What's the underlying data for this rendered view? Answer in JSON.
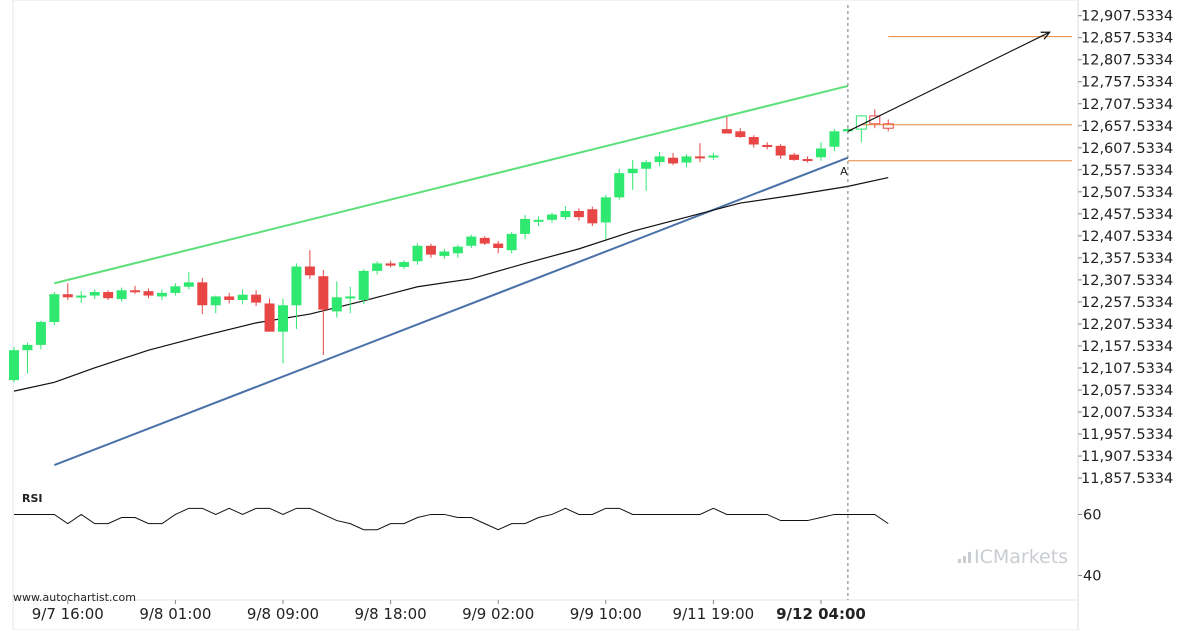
{
  "colors": {
    "up": "#2ee86f",
    "down": "#e84545",
    "channel_top": "#5ce07a",
    "channel_bottom": "#4a72a8",
    "target_line": "#e8863a",
    "ma": "#111111",
    "forecast": "#111111",
    "vline": "#777777",
    "grid": "#f1f1f1",
    "brand": "#c9ccd1"
  },
  "watermark": "www.autochartist.com",
  "brand": {
    "name": "ICMarkets",
    "icon": "bar-chart-logo-icon"
  },
  "chart_data": [
    {
      "type": "candlestick",
      "ylim": [
        11835.0,
        12925.0
      ],
      "x_count": 66,
      "y_ticks": [
        "12,907.5334",
        "12,857.5334",
        "12,807.5334",
        "12,757.5334",
        "12,707.5334",
        "12,657.5334",
        "12,607.5334",
        "12,557.5334",
        "12,507.5334",
        "12,457.5334",
        "12,407.5334",
        "12,357.5334",
        "12,307.5334",
        "12,257.5334",
        "12,207.5334",
        "12,157.5334",
        "12,107.5334",
        "12,057.5334",
        "12,007.5334",
        "11,957.5334",
        "11,907.5334",
        "11,857.5334"
      ],
      "y_tick_values": [
        12907.5334,
        12857.5334,
        12807.5334,
        12757.5334,
        12707.5334,
        12657.5334,
        12607.5334,
        12557.5334,
        12507.5334,
        12457.5334,
        12407.5334,
        12357.5334,
        12307.5334,
        12257.5334,
        12207.5334,
        12157.5334,
        12107.5334,
        12057.5334,
        12007.5334,
        11957.5334,
        11907.5334,
        11857.5334
      ],
      "x_ticks": [
        {
          "label": "9/7 16:00",
          "index": 4
        },
        {
          "label": "9/8 01:00",
          "index": 12
        },
        {
          "label": "9/8 09:00",
          "index": 20
        },
        {
          "label": "9/8 18:00",
          "index": 28
        },
        {
          "label": "9/9 02:00",
          "index": 36
        },
        {
          "label": "9/9 10:00",
          "index": 44
        },
        {
          "label": "9/11 19:00",
          "index": 52
        },
        {
          "label": "9/12 04:00",
          "index": 60,
          "bold": true
        }
      ],
      "candles": [
        {
          "o": 12080,
          "h": 12155,
          "l": 12075,
          "c": 12148
        },
        {
          "o": 12148,
          "h": 12165,
          "l": 12095,
          "c": 12160
        },
        {
          "o": 12160,
          "h": 12215,
          "l": 12150,
          "c": 12212
        },
        {
          "o": 12212,
          "h": 12280,
          "l": 12205,
          "c": 12275
        },
        {
          "o": 12275,
          "h": 12300,
          "l": 12262,
          "c": 12268
        },
        {
          "o": 12268,
          "h": 12282,
          "l": 12255,
          "c": 12272
        },
        {
          "o": 12272,
          "h": 12286,
          "l": 12264,
          "c": 12280
        },
        {
          "o": 12280,
          "h": 12284,
          "l": 12262,
          "c": 12266
        },
        {
          "o": 12264,
          "h": 12290,
          "l": 12258,
          "c": 12284
        },
        {
          "o": 12284,
          "h": 12294,
          "l": 12276,
          "c": 12282
        },
        {
          "o": 12282,
          "h": 12288,
          "l": 12266,
          "c": 12272
        },
        {
          "o": 12270,
          "h": 12286,
          "l": 12262,
          "c": 12278
        },
        {
          "o": 12278,
          "h": 12300,
          "l": 12272,
          "c": 12293
        },
        {
          "o": 12292,
          "h": 12325,
          "l": 12286,
          "c": 12302
        },
        {
          "o": 12302,
          "h": 12312,
          "l": 12230,
          "c": 12250
        },
        {
          "o": 12250,
          "h": 12272,
          "l": 12232,
          "c": 12270
        },
        {
          "o": 12270,
          "h": 12278,
          "l": 12254,
          "c": 12262
        },
        {
          "o": 12262,
          "h": 12286,
          "l": 12252,
          "c": 12274
        },
        {
          "o": 12274,
          "h": 12284,
          "l": 12248,
          "c": 12256
        },
        {
          "o": 12254,
          "h": 12265,
          "l": 12190,
          "c": 12190
        },
        {
          "o": 12190,
          "h": 12265,
          "l": 12118,
          "c": 12250
        },
        {
          "o": 12250,
          "h": 12345,
          "l": 12196,
          "c": 12338
        },
        {
          "o": 12338,
          "h": 12375,
          "l": 12310,
          "c": 12318
        },
        {
          "o": 12316,
          "h": 12330,
          "l": 12137,
          "c": 12240
        },
        {
          "o": 12236,
          "h": 12304,
          "l": 12222,
          "c": 12268
        },
        {
          "o": 12268,
          "h": 12292,
          "l": 12232,
          "c": 12270
        },
        {
          "o": 12262,
          "h": 12332,
          "l": 12253,
          "c": 12328
        },
        {
          "o": 12328,
          "h": 12350,
          "l": 12320,
          "c": 12345
        },
        {
          "o": 12345,
          "h": 12351,
          "l": 12336,
          "c": 12340
        },
        {
          "o": 12337,
          "h": 12352,
          "l": 12332,
          "c": 12348
        },
        {
          "o": 12350,
          "h": 12390,
          "l": 12342,
          "c": 12385
        },
        {
          "o": 12385,
          "h": 12390,
          "l": 12358,
          "c": 12365
        },
        {
          "o": 12362,
          "h": 12378,
          "l": 12356,
          "c": 12372
        },
        {
          "o": 12368,
          "h": 12388,
          "l": 12358,
          "c": 12383
        },
        {
          "o": 12385,
          "h": 12410,
          "l": 12380,
          "c": 12406
        },
        {
          "o": 12403,
          "h": 12407,
          "l": 12387,
          "c": 12390
        },
        {
          "o": 12390,
          "h": 12396,
          "l": 12368,
          "c": 12380
        },
        {
          "o": 12375,
          "h": 12416,
          "l": 12368,
          "c": 12412
        },
        {
          "o": 12412,
          "h": 12455,
          "l": 12400,
          "c": 12446
        },
        {
          "o": 12442,
          "h": 12452,
          "l": 12430,
          "c": 12444
        },
        {
          "o": 12444,
          "h": 12460,
          "l": 12438,
          "c": 12456
        },
        {
          "o": 12450,
          "h": 12475,
          "l": 12444,
          "c": 12464
        },
        {
          "o": 12464,
          "h": 12470,
          "l": 12442,
          "c": 12450
        },
        {
          "o": 12468,
          "h": 12474,
          "l": 12430,
          "c": 12436
        },
        {
          "o": 12438,
          "h": 12500,
          "l": 12400,
          "c": 12495
        },
        {
          "o": 12495,
          "h": 12560,
          "l": 12490,
          "c": 12550
        },
        {
          "o": 12550,
          "h": 12580,
          "l": 12512,
          "c": 12560
        },
        {
          "o": 12560,
          "h": 12580,
          "l": 12510,
          "c": 12575
        },
        {
          "o": 12575,
          "h": 12598,
          "l": 12565,
          "c": 12588
        },
        {
          "o": 12585,
          "h": 12596,
          "l": 12568,
          "c": 12572
        },
        {
          "o": 12574,
          "h": 12593,
          "l": 12563,
          "c": 12588
        },
        {
          "o": 12588,
          "h": 12618,
          "l": 12575,
          "c": 12585
        },
        {
          "o": 12588,
          "h": 12596,
          "l": 12580,
          "c": 12590
        },
        {
          "o": 12650,
          "h": 12678,
          "l": 12640,
          "c": 12640
        },
        {
          "o": 12645,
          "h": 12652,
          "l": 12630,
          "c": 12632
        },
        {
          "o": 12632,
          "h": 12636,
          "l": 12608,
          "c": 12615
        },
        {
          "o": 12614,
          "h": 12620,
          "l": 12604,
          "c": 12612
        },
        {
          "o": 12612,
          "h": 12616,
          "l": 12582,
          "c": 12590
        },
        {
          "o": 12592,
          "h": 12596,
          "l": 12578,
          "c": 12580
        },
        {
          "o": 12582,
          "h": 12588,
          "l": 12574,
          "c": 12580
        },
        {
          "o": 12586,
          "h": 12620,
          "l": 12578,
          "c": 12606
        },
        {
          "o": 12610,
          "h": 12650,
          "l": 12600,
          "c": 12645
        },
        {
          "o": 12645,
          "h": 12655,
          "l": 12640,
          "c": 12650
        }
      ],
      "ghost_candles": [
        {
          "index": 63,
          "o": 12650,
          "h": 12682,
          "l": 12620,
          "c": 12680
        },
        {
          "index": 64,
          "o": 12680,
          "h": 12695,
          "l": 12652,
          "c": 12662
        },
        {
          "index": 65,
          "o": 12662,
          "h": 12672,
          "l": 12645,
          "c": 12652
        }
      ],
      "moving_average": [
        {
          "i": 0,
          "v": 12055
        },
        {
          "i": 3,
          "v": 12075
        },
        {
          "i": 6,
          "v": 12108
        },
        {
          "i": 10,
          "v": 12148
        },
        {
          "i": 14,
          "v": 12180
        },
        {
          "i": 18,
          "v": 12210
        },
        {
          "i": 22,
          "v": 12230
        },
        {
          "i": 26,
          "v": 12260
        },
        {
          "i": 30,
          "v": 12292
        },
        {
          "i": 34,
          "v": 12310
        },
        {
          "i": 38,
          "v": 12345
        },
        {
          "i": 42,
          "v": 12378
        },
        {
          "i": 46,
          "v": 12418
        },
        {
          "i": 50,
          "v": 12450
        },
        {
          "i": 54,
          "v": 12482
        },
        {
          "i": 58,
          "v": 12500
        },
        {
          "i": 62,
          "v": 12520
        },
        {
          "i": 65,
          "v": 12540
        }
      ],
      "channel_top": [
        {
          "i": 3,
          "v": 12300
        },
        {
          "i": 62,
          "v": 12748
        }
      ],
      "channel_bottom": [
        {
          "i": 3,
          "v": 11887
        },
        {
          "i": 62,
          "v": 12585
        }
      ],
      "target_levels": [
        {
          "value": 12860,
          "from_index": 65
        },
        {
          "value": 12660,
          "from_index": 63
        },
        {
          "value": 12578,
          "from_index": 62
        }
      ],
      "forecast_arrow": {
        "from": {
          "i": 62,
          "v": 12645
        },
        "to": {
          "i": 77,
          "v": 12870
        }
      },
      "vline_index": 62,
      "annotation": {
        "text": "A",
        "index": 61.7,
        "value": 12568
      }
    },
    {
      "type": "line",
      "title": "RSI",
      "ylim": [
        32,
        68
      ],
      "y_ticks": [
        60,
        40
      ],
      "values": [
        60,
        60,
        60,
        60,
        57,
        60,
        57,
        57,
        59,
        59,
        57,
        57,
        60,
        62,
        62,
        60,
        62,
        60,
        62,
        62,
        60,
        62,
        62,
        60,
        58,
        57,
        55,
        55,
        57,
        57,
        59,
        60,
        60,
        59,
        59,
        57,
        55,
        57,
        57,
        59,
        60,
        62,
        60,
        60,
        62,
        62,
        60,
        60,
        60,
        60,
        60,
        60,
        62,
        60,
        60,
        60,
        60,
        58,
        58,
        58,
        59,
        60,
        60,
        60,
        60,
        57
      ]
    }
  ]
}
